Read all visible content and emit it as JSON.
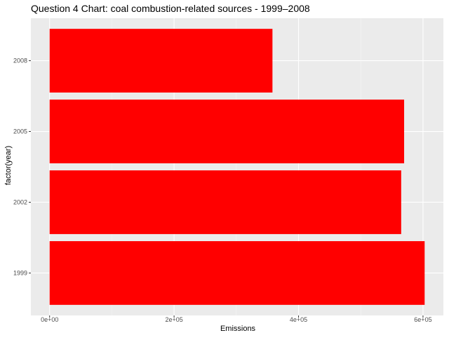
{
  "chart_data": {
    "type": "bar",
    "orientation": "horizontal",
    "title": "Question 4 Chart: coal combustion-related sources - 1999–2008",
    "xlabel": "Emissions",
    "ylabel": "factor(year)",
    "categories": [
      "1999",
      "2002",
      "2005",
      "2008"
    ],
    "values": [
      602624,
      564936,
      569654,
      358083
    ],
    "xlim": [
      -30131,
      632755
    ],
    "x_ticks": [
      0,
      200000,
      400000,
      600000
    ],
    "x_tick_labels": [
      "0e+00",
      "2e+05",
      "4e+05",
      "6e+05"
    ],
    "grid": true,
    "legend": "none"
  },
  "colors": {
    "bar": "#ff0000",
    "panel_background": "#ebebeb",
    "grid_major": "#ffffff",
    "grid_minor": "#f5f5f5"
  }
}
